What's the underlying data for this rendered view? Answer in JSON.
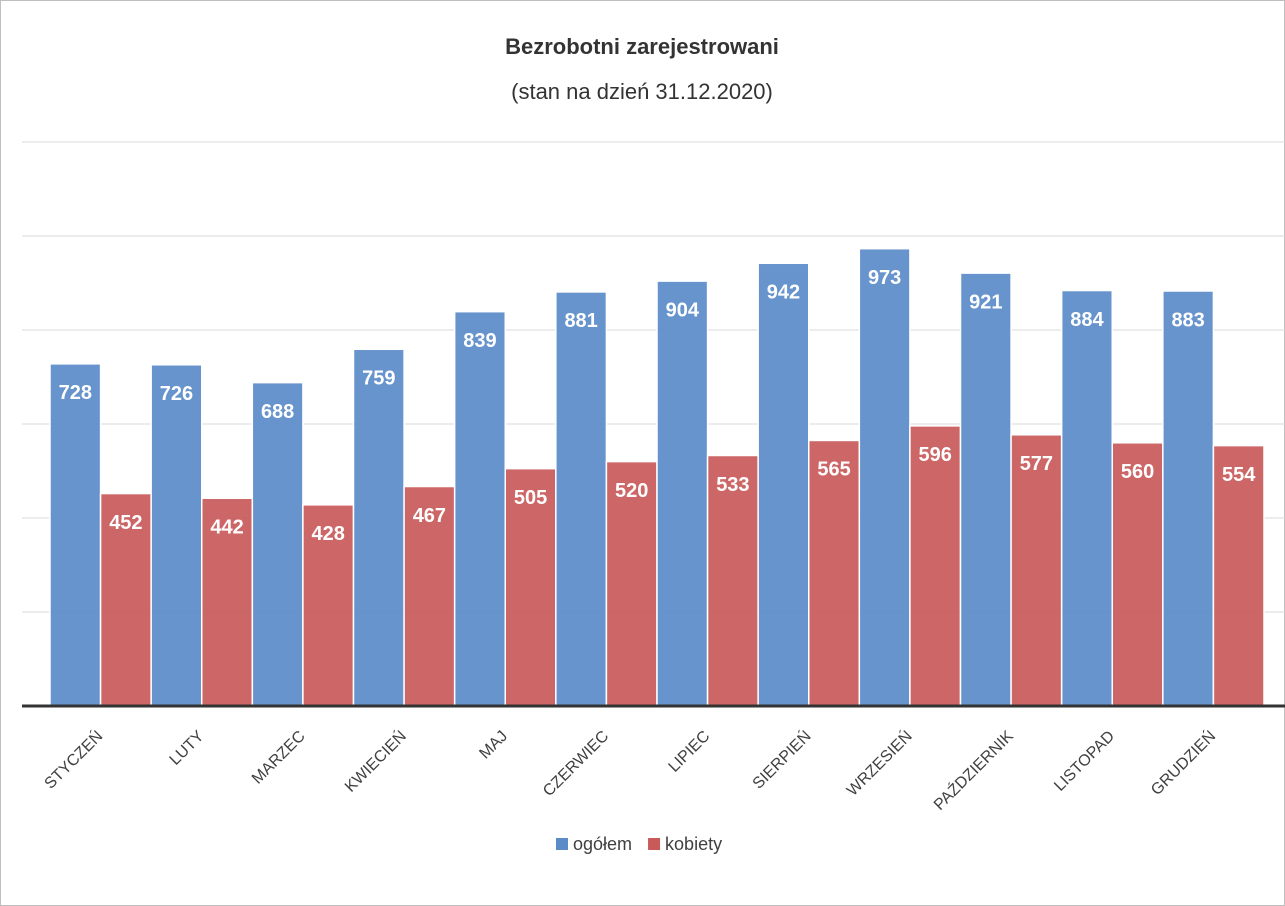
{
  "chart_data": {
    "type": "bar",
    "title": "Bezrobotni zarejestrowani",
    "subtitle": "(stan na dzień 31.12.2020)",
    "categories": [
      "STYCZEŃ",
      "LUTY",
      "MARZEC",
      "KWIECIEŃ",
      "MAJ",
      "CZERWIEC",
      "LIPIEC",
      "SIERPIEŃ",
      "WRZESIEŃ",
      "PAŹDZIERNIK",
      "LISTOPAD",
      "GRUDZIEŃ"
    ],
    "series": [
      {
        "name": "ogółem",
        "color": "#5b8cc8",
        "values": [
          728,
          726,
          688,
          759,
          839,
          881,
          904,
          942,
          973,
          921,
          884,
          883
        ]
      },
      {
        "name": "kobiety",
        "color": "#c95a5a",
        "values": [
          452,
          442,
          428,
          467,
          505,
          520,
          533,
          565,
          596,
          577,
          560,
          554
        ]
      }
    ],
    "ylim": [
      0,
      1200
    ],
    "yticks": [
      0,
      200,
      400,
      600,
      800,
      1000,
      1200
    ],
    "grid": true,
    "legend": "bottom"
  }
}
